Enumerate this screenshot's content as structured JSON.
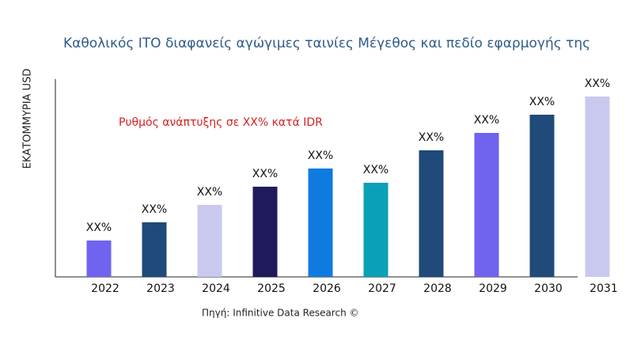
{
  "chart_data": {
    "type": "bar",
    "title": "Καθολικός ITO διαφανείς αγώγιμες ταινίες Μέγεθος και πεδίο εφαρμογής της",
    "y_label": "ΕΚΑΤΟΜΜΥΡΙΑ USD",
    "annotation": "Ρυθμός ανάπτυξης σε XX% κατά IDR",
    "source": "Πηγή: Infinitive Data Research ©",
    "categories": [
      "2022",
      "2023",
      "2024",
      "2025",
      "2026",
      "2027",
      "2028",
      "2029",
      "2030",
      "2031"
    ],
    "values": [
      46,
      69,
      91,
      114,
      137,
      119,
      160,
      182,
      205,
      228
    ],
    "value_labels": [
      "XX%",
      "XX%",
      "XX%",
      "XX%",
      "XX%",
      "XX%",
      "XX%",
      "XX%",
      "XX%",
      "XX%"
    ],
    "colors": [
      "#6f63f0",
      "#1f4a7a",
      "#c9c9f0",
      "#1f1a5a",
      "#0f7be0",
      "#0aa0b8",
      "#1f4a7a",
      "#6f63f0",
      "#1f4a7a",
      "#c9c9f0"
    ],
    "ylim": [
      0,
      250
    ]
  }
}
